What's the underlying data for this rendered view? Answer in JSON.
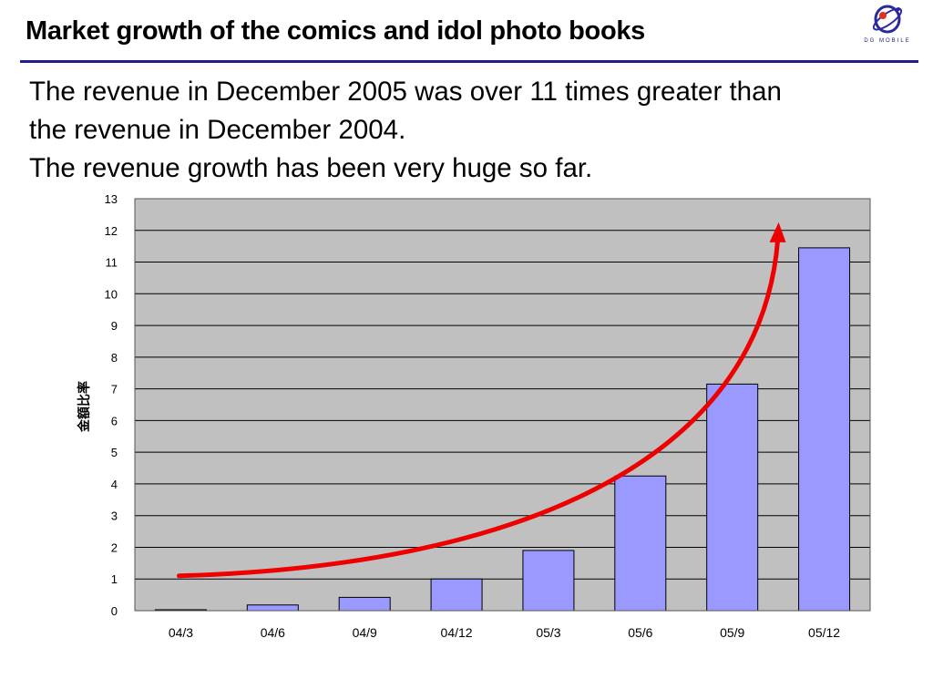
{
  "header": {
    "title": "Market growth of the comics and idol photo books",
    "logo_text": "DG MOBILE"
  },
  "body": {
    "lines": [
      "The revenue in December 2005 was over 11 times greater than",
      "the revenue in December 2004.",
      "The revenue growth has been very huge so far."
    ]
  },
  "colors": {
    "plot_background": "#c0c0c0",
    "bar_fill": "#9999ff",
    "arrow": "#ee0000",
    "rule": "#1f1f8f"
  },
  "chart_data": {
    "type": "bar",
    "categories": [
      "04/3",
      "04/6",
      "04/9",
      "04/12",
      "05/3",
      "05/6",
      "05/9",
      "05/12"
    ],
    "values": [
      0.03,
      0.18,
      0.42,
      1.0,
      1.9,
      4.25,
      7.15,
      11.45
    ],
    "ylabel": "金額比率",
    "ylim": [
      0,
      13
    ],
    "yticks": [
      0,
      1,
      2,
      3,
      4,
      5,
      6,
      7,
      8,
      9,
      10,
      11,
      12,
      13
    ],
    "grid": true,
    "annotation": "red growth arrow rising across the bars"
  }
}
